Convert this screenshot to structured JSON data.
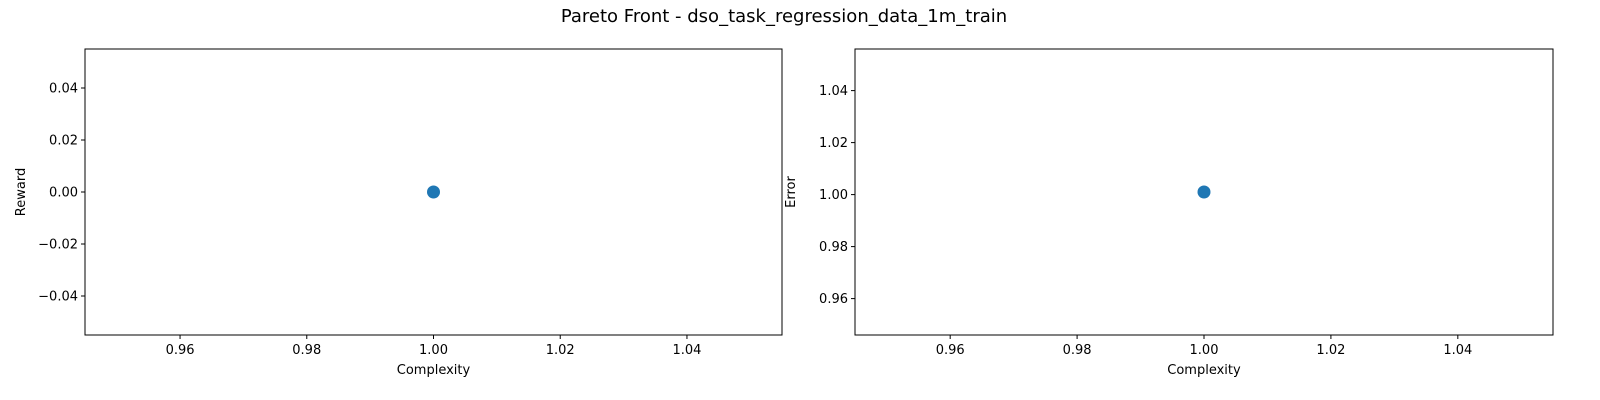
{
  "figure": {
    "title": "Pareto Front - dso_task_regression_data_1m_train"
  },
  "colors": {
    "marker": "#1f77b4",
    "axes": "#000000",
    "background": "#ffffff"
  },
  "chart_data": [
    {
      "type": "scatter",
      "xlabel": "Complexity",
      "ylabel": "Reward",
      "xlim": [
        0.945,
        1.055
      ],
      "ylim": [
        -0.055,
        0.055
      ],
      "grid": false,
      "xticks": [
        0.96,
        0.98,
        1.0,
        1.02,
        1.04
      ],
      "xtick_labels": [
        "0.96",
        "0.98",
        "1.00",
        "1.02",
        "1.04"
      ],
      "yticks": [
        -0.04,
        -0.02,
        0.0,
        0.02,
        0.04
      ],
      "ytick_labels": [
        "−0.04",
        "−0.02",
        "0.00",
        "0.02",
        "0.04"
      ],
      "points": [
        {
          "x": 1.0,
          "y": 0.0
        }
      ]
    },
    {
      "type": "scatter",
      "xlabel": "Complexity",
      "ylabel": "Error",
      "xlim": [
        0.945,
        1.055
      ],
      "ylim": [
        0.946,
        1.056
      ],
      "grid": false,
      "xticks": [
        0.96,
        0.98,
        1.0,
        1.02,
        1.04
      ],
      "xtick_labels": [
        "0.96",
        "0.98",
        "1.00",
        "1.02",
        "1.04"
      ],
      "yticks": [
        0.96,
        0.98,
        1.0,
        1.02,
        1.04
      ],
      "ytick_labels": [
        "0.96",
        "0.98",
        "1.00",
        "1.02",
        "1.04"
      ],
      "points": [
        {
          "x": 1.0,
          "y": 1.001
        }
      ]
    }
  ]
}
